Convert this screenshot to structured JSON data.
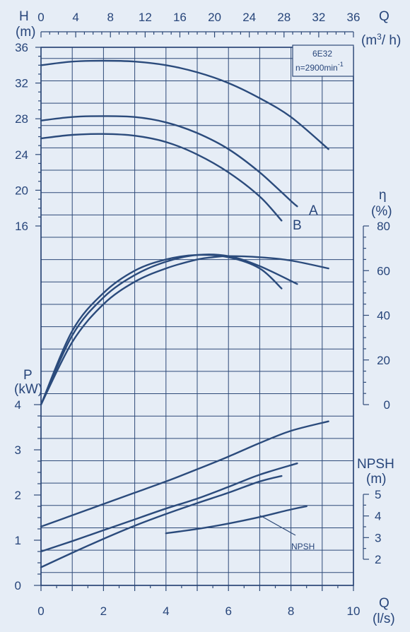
{
  "labels": {
    "h_symbol": "H",
    "h_unit": "(m)",
    "q_top_symbol": "Q",
    "q_top_unit": "(m",
    "q_top_unit_sup": "3",
    "q_top_unit_end": "/ h)",
    "eta_symbol": "η",
    "eta_unit": "(%)",
    "p_symbol": "P",
    "p_unit": "(kW)",
    "npsh_symbol": "NPSH",
    "npsh_unit": "(m)",
    "q_bottom_symbol": "Q",
    "q_bottom_unit": "(l/s)",
    "model": "6E32",
    "speed": "n=2900min",
    "speed_sup": "-1",
    "curve_a": "A",
    "curve_b": "B",
    "npsh_callout": "NPSH"
  },
  "chart_data": {
    "type": "line",
    "x_top": {
      "label": "Q (m3/h)",
      "ticks": [
        "0",
        "4",
        "8",
        "12",
        "16",
        "20",
        "24",
        "28",
        "32",
        "36"
      ]
    },
    "x_bottom": {
      "label": "Q (l/s)",
      "ticks": [
        "0",
        "2",
        "4",
        "6",
        "8",
        "10"
      ],
      "range": [
        0,
        10
      ]
    },
    "head": {
      "label": "H (m)",
      "ticks": [
        "16",
        "20",
        "24",
        "28",
        "32",
        "36"
      ],
      "range": [
        16,
        36
      ],
      "series": [
        {
          "name": "",
          "x": [
            0,
            1,
            2,
            3,
            4,
            5,
            6,
            7,
            8,
            9.2
          ],
          "y": [
            34.0,
            34.4,
            34.5,
            34.4,
            34.0,
            33.2,
            32.0,
            30.3,
            28.2,
            24.6
          ]
        },
        {
          "name": "A",
          "x": [
            0,
            1,
            2,
            3,
            4,
            5,
            6,
            7,
            8,
            8.2
          ],
          "y": [
            27.8,
            28.2,
            28.3,
            28.2,
            27.6,
            26.4,
            24.6,
            22.0,
            18.8,
            18.2
          ]
        },
        {
          "name": "B",
          "x": [
            0,
            1,
            2,
            3,
            4,
            5,
            6,
            7,
            7.7
          ],
          "y": [
            25.8,
            26.2,
            26.3,
            26.1,
            25.4,
            24.0,
            22.0,
            19.3,
            16.6
          ]
        }
      ]
    },
    "efficiency": {
      "label": "η (%)",
      "ticks": [
        "0",
        "20",
        "40",
        "60",
        "80"
      ],
      "range": [
        0,
        80
      ],
      "series": [
        {
          "name": "",
          "x": [
            0,
            1,
            2,
            3,
            4,
            5,
            5.5,
            6,
            7,
            8,
            9.2
          ],
          "y": [
            0,
            28,
            45,
            55,
            61,
            65,
            66,
            66.5,
            66,
            64.5,
            61
          ]
        },
        {
          "name": "",
          "x": [
            0,
            1,
            2,
            3,
            4,
            5,
            6,
            7,
            7.7
          ],
          "y": [
            0,
            33,
            50,
            60,
            65,
            67,
            66,
            61,
            52
          ]
        },
        {
          "name": "",
          "x": [
            0,
            1,
            2,
            3,
            4,
            5,
            6,
            7,
            8.2
          ],
          "y": [
            0,
            31,
            48,
            58,
            64,
            67,
            66.5,
            62,
            54
          ]
        }
      ]
    },
    "power": {
      "label": "P (kW)",
      "ticks": [
        "0",
        "1",
        "2",
        "3",
        "4"
      ],
      "range": [
        0,
        4
      ],
      "series": [
        {
          "name": "",
          "x": [
            0,
            1,
            2,
            3,
            4,
            5,
            6,
            7,
            8,
            9.2
          ],
          "y": [
            1.3,
            1.55,
            1.8,
            2.05,
            2.3,
            2.57,
            2.85,
            3.15,
            3.42,
            3.63
          ]
        },
        {
          "name": "A",
          "x": [
            0,
            1,
            2,
            3,
            4,
            5,
            6,
            7,
            8.2
          ],
          "y": [
            0.75,
            0.98,
            1.22,
            1.46,
            1.7,
            1.92,
            2.18,
            2.45,
            2.7
          ]
        },
        {
          "name": "B",
          "x": [
            0,
            1,
            2,
            3,
            4,
            5,
            6,
            7,
            7.7
          ],
          "y": [
            0.4,
            0.72,
            1.03,
            1.32,
            1.58,
            1.82,
            2.05,
            2.3,
            2.42
          ]
        }
      ]
    },
    "npsh": {
      "label": "NPSH (m)",
      "ticks": [
        "2",
        "3",
        "4",
        "5"
      ],
      "range": [
        2,
        5
      ],
      "series": [
        {
          "name": "NPSH",
          "x": [
            4,
            5,
            6,
            7,
            8,
            8.5
          ],
          "y": [
            3.2,
            3.4,
            3.65,
            3.95,
            4.3,
            4.45
          ]
        }
      ]
    },
    "grid": true
  }
}
